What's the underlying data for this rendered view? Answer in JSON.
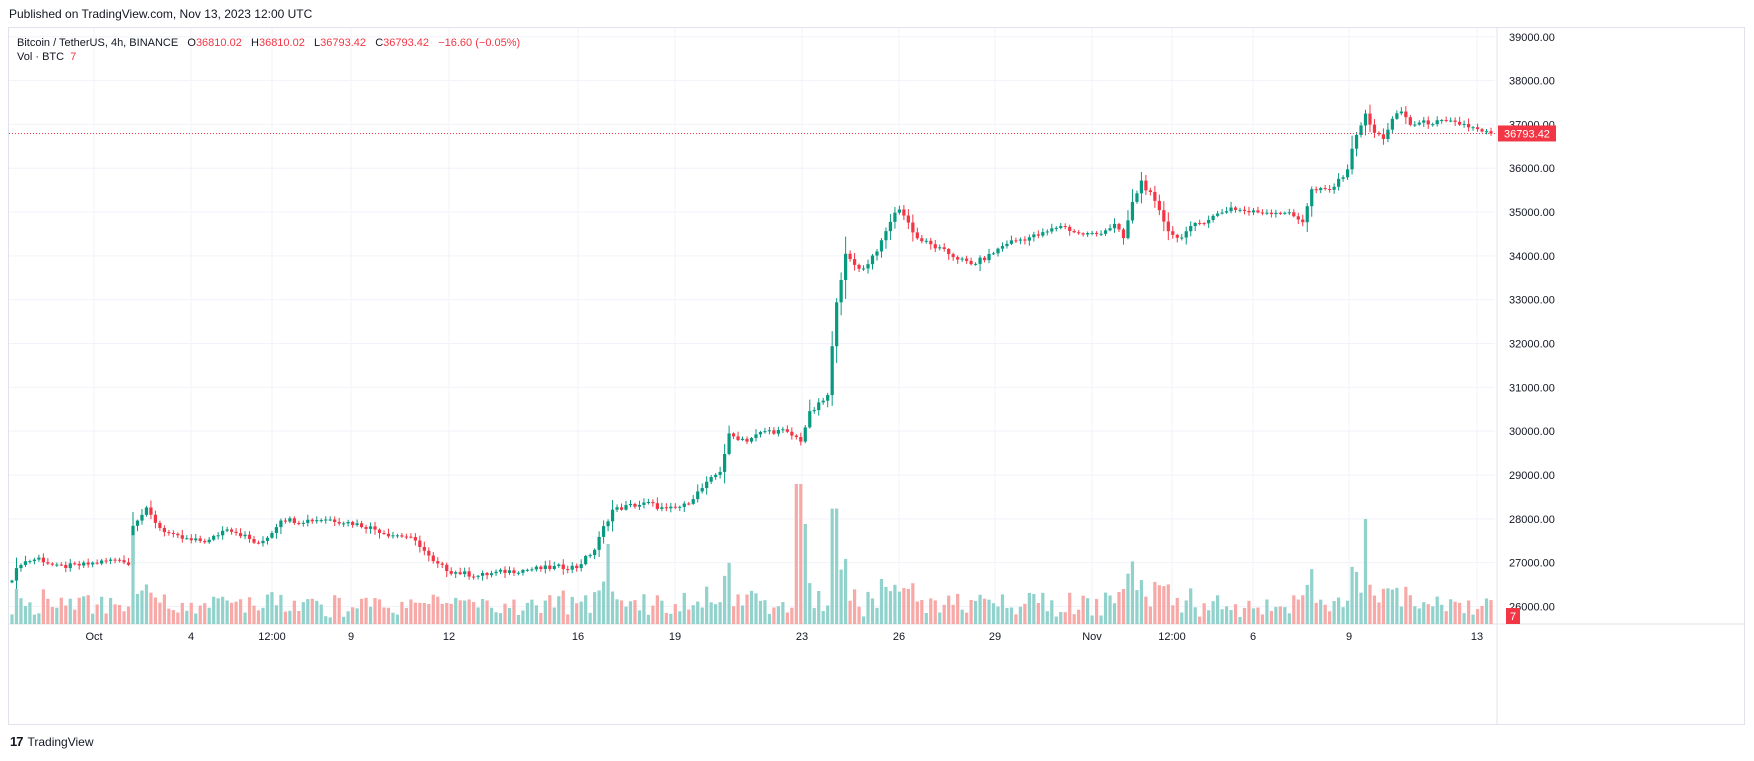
{
  "published": "Published on TradingView.com, Nov 13, 2023 12:00 UTC",
  "legend": {
    "symbol": "Bitcoin / TetherUS, 4h, BINANCE",
    "o_label": "O",
    "o": "36810.02",
    "h_label": "H",
    "h": "36810.02",
    "l_label": "L",
    "l": "36793.42",
    "c_label": "C",
    "c": "36793.42",
    "change": "−16.60 (−0.05%)"
  },
  "volume_legend": {
    "label": "Vol · BTC",
    "value": "7"
  },
  "footer": {
    "brand": "TradingView"
  },
  "colors": {
    "up": "#089981",
    "down": "#f23645",
    "vol_up": "#92d2cc",
    "vol_down": "#f7a9a7",
    "grid": "#f0f3fa",
    "text": "#131722"
  },
  "chart_data": {
    "type": "candlestick",
    "title": "Bitcoin / TetherUS, 4h, BINANCE",
    "ylim": [
      25600,
      39200
    ],
    "yticks": [
      "39000.00",
      "38000.00",
      "37000.00",
      "36000.00",
      "35000.00",
      "34000.00",
      "33000.00",
      "32000.00",
      "31000.00",
      "30000.00",
      "29000.00",
      "28000.00",
      "27000.00",
      "26000.00"
    ],
    "xtick_labels": [
      "Oct",
      "4",
      "12:00",
      "9",
      "12",
      "16",
      "19",
      "23",
      "26",
      "29",
      "Nov",
      "12:00",
      "6",
      "9",
      "13"
    ],
    "last_price_label": "36793.42",
    "last_price": 36793.42,
    "volume_last_label": "7",
    "price_path": [
      [
        0,
        26650
      ],
      [
        2,
        27000
      ],
      [
        6,
        27100
      ],
      [
        10,
        26900
      ],
      [
        16,
        26950
      ],
      [
        22,
        27050
      ],
      [
        24,
        27100
      ],
      [
        26,
        26950
      ],
      [
        27,
        27900
      ],
      [
        30,
        28200
      ],
      [
        33,
        27800
      ],
      [
        36,
        27600
      ],
      [
        40,
        27500
      ],
      [
        44,
        27500
      ],
      [
        48,
        27800
      ],
      [
        52,
        27600
      ],
      [
        55,
        27400
      ],
      [
        58,
        27700
      ],
      [
        60,
        28000
      ],
      [
        64,
        27950
      ],
      [
        70,
        28000
      ],
      [
        76,
        27900
      ],
      [
        80,
        27800
      ],
      [
        84,
        27650
      ],
      [
        88,
        27600
      ],
      [
        91,
        27400
      ],
      [
        94,
        27000
      ],
      [
        98,
        26800
      ],
      [
        104,
        26700
      ],
      [
        110,
        26800
      ],
      [
        116,
        26850
      ],
      [
        122,
        26900
      ],
      [
        126,
        26900
      ],
      [
        130,
        27300
      ],
      [
        132,
        27800
      ],
      [
        134,
        28200
      ],
      [
        138,
        28300
      ],
      [
        142,
        28350
      ],
      [
        146,
        28200
      ],
      [
        150,
        28300
      ],
      [
        154,
        28700
      ],
      [
        158,
        29100
      ],
      [
        160,
        29900
      ],
      [
        164,
        29800
      ],
      [
        168,
        30000
      ],
      [
        172,
        30000
      ],
      [
        176,
        29800
      ],
      [
        178,
        30400
      ],
      [
        182,
        30800
      ],
      [
        184,
        33000
      ],
      [
        186,
        34000
      ],
      [
        188,
        33800
      ],
      [
        190,
        33700
      ],
      [
        194,
        34300
      ],
      [
        196,
        34800
      ],
      [
        198,
        35100
      ],
      [
        202,
        34400
      ],
      [
        206,
        34200
      ],
      [
        210,
        34000
      ],
      [
        214,
        33800
      ],
      [
        218,
        34000
      ],
      [
        222,
        34300
      ],
      [
        226,
        34400
      ],
      [
        230,
        34500
      ],
      [
        234,
        34700
      ],
      [
        238,
        34500
      ],
      [
        242,
        34500
      ],
      [
        246,
        34700
      ],
      [
        248,
        34400
      ],
      [
        250,
        35200
      ],
      [
        252,
        35700
      ],
      [
        254,
        35400
      ],
      [
        256,
        35000
      ],
      [
        258,
        34600
      ],
      [
        260,
        34400
      ],
      [
        264,
        34700
      ],
      [
        268,
        34900
      ],
      [
        272,
        35100
      ],
      [
        276,
        35000
      ],
      [
        280,
        35000
      ],
      [
        284,
        35000
      ],
      [
        288,
        34800
      ],
      [
        290,
        35500
      ],
      [
        294,
        35500
      ],
      [
        296,
        35700
      ],
      [
        298,
        36000
      ],
      [
        300,
        36800
      ],
      [
        302,
        37200
      ],
      [
        304,
        36800
      ],
      [
        306,
        36700
      ],
      [
        308,
        37100
      ],
      [
        310,
        37300
      ],
      [
        312,
        37000
      ],
      [
        316,
        37050
      ],
      [
        320,
        37050
      ],
      [
        324,
        37000
      ],
      [
        328,
        36820
      ],
      [
        330,
        36793
      ]
    ]
  }
}
